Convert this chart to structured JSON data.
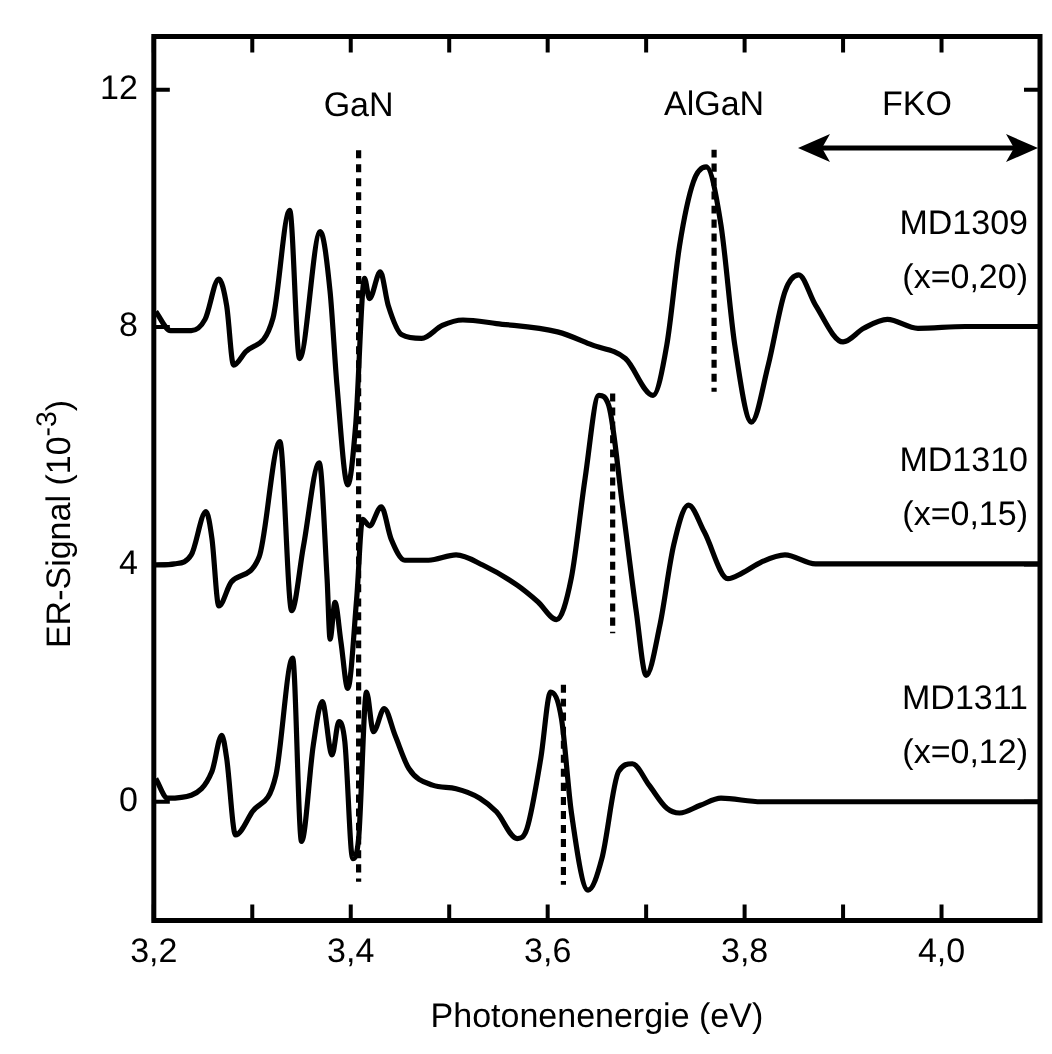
{
  "chart_data": {
    "type": "line",
    "xlabel": "Photonenenergie (eV)",
    "ylabel": "ER-Signal (10$^{-3}$)",
    "xlim": [
      3.2,
      4.1
    ],
    "ylim": [
      -2,
      12.9
    ],
    "xticks": [
      {
        "value": 3.2,
        "label": "3,2"
      },
      {
        "value": 3.3,
        "label": null
      },
      {
        "value": 3.4,
        "label": "3,4"
      },
      {
        "value": 3.5,
        "label": null
      },
      {
        "value": 3.6,
        "label": "3,6"
      },
      {
        "value": 3.7,
        "label": null
      },
      {
        "value": 3.8,
        "label": "3,8"
      },
      {
        "value": 3.9,
        "label": null
      },
      {
        "value": 4.0,
        "label": "4,0"
      },
      {
        "value": 4.1,
        "label": null
      }
    ],
    "yticks": [
      0,
      4,
      8,
      12
    ],
    "grid": false,
    "legend": false,
    "marker": "none",
    "line_style": "solid",
    "annotations": [
      "GaN",
      "AlGaN",
      "FKO"
    ],
    "series": [
      {
        "name": "MD1309 (x=0,20)",
        "color": "#000000",
        "x": [
          3.202,
          3.217,
          3.238,
          3.252,
          3.266,
          3.274,
          3.281,
          3.293,
          3.321,
          3.338,
          3.348,
          3.369,
          3.379,
          3.386,
          3.397,
          3.405,
          3.414,
          3.419,
          3.43,
          3.438,
          3.452,
          3.472,
          3.493,
          3.514,
          3.548,
          3.61,
          3.645,
          3.679,
          3.707,
          3.721,
          3.734,
          3.748,
          3.761,
          3.776,
          3.79,
          3.807,
          3.824,
          3.841,
          3.855,
          3.872,
          3.9,
          3.921,
          3.945,
          3.976,
          4.024,
          4.1
        ],
        "values": [
          8.26,
          7.94,
          7.94,
          8.13,
          8.81,
          8.36,
          7.36,
          7.58,
          8.15,
          9.97,
          7.47,
          9.61,
          8.6,
          7.02,
          5.34,
          6.35,
          8.82,
          8.48,
          8.93,
          8.37,
          7.87,
          7.81,
          8.03,
          8.12,
          8.06,
          7.92,
          7.7,
          7.47,
          6.85,
          7.7,
          9.38,
          10.45,
          10.7,
          9.72,
          7.7,
          6.4,
          7.36,
          8.6,
          8.88,
          8.37,
          7.75,
          7.98,
          8.13,
          7.98,
          8.01,
          8.01
        ]
      },
      {
        "name": "MD1310 (x=0,15)",
        "color": "#000000",
        "x": [
          3.202,
          3.221,
          3.238,
          3.253,
          3.259,
          3.266,
          3.279,
          3.307,
          3.328,
          3.34,
          3.352,
          3.368,
          3.376,
          3.379,
          3.384,
          3.39,
          3.397,
          3.406,
          3.412,
          3.419,
          3.431,
          3.441,
          3.455,
          3.479,
          3.507,
          3.534,
          3.569,
          3.59,
          3.609,
          3.624,
          3.638,
          3.652,
          3.662,
          3.676,
          3.69,
          3.7,
          3.714,
          3.728,
          3.743,
          3.759,
          3.783,
          3.797,
          3.817,
          3.841,
          3.872,
          3.921,
          4.1
        ],
        "values": [
          3.99,
          4.01,
          4.16,
          4.89,
          4.44,
          3.3,
          3.71,
          4.13,
          6.07,
          3.22,
          4.31,
          5.71,
          3.75,
          2.74,
          3.36,
          2.7,
          1.91,
          3.42,
          4.76,
          4.65,
          4.97,
          4.43,
          4.07,
          4.07,
          4.16,
          3.99,
          3.65,
          3.37,
          3.07,
          3.77,
          5.45,
          6.85,
          6.68,
          4.99,
          3.2,
          2.13,
          2.98,
          4.33,
          5.0,
          4.55,
          3.76,
          3.85,
          4.04,
          4.16,
          4.01,
          4.01,
          4.01
        ]
      },
      {
        "name": "MD1311 (x=0,12)",
        "color": "#000000",
        "x": [
          3.202,
          3.214,
          3.238,
          3.259,
          3.269,
          3.274,
          3.283,
          3.3,
          3.324,
          3.341,
          3.35,
          3.362,
          3.371,
          3.381,
          3.388,
          3.394,
          3.402,
          3.408,
          3.416,
          3.423,
          3.434,
          3.445,
          3.459,
          3.483,
          3.507,
          3.531,
          3.548,
          3.569,
          3.579,
          3.593,
          3.603,
          3.614,
          3.624,
          3.641,
          3.655,
          3.672,
          3.686,
          3.703,
          3.721,
          3.734,
          3.755,
          3.776,
          3.817,
          4.1
        ],
        "values": [
          0.39,
          0.06,
          0.11,
          0.51,
          1.12,
          0.73,
          -0.56,
          -0.17,
          0.45,
          2.42,
          -0.67,
          0.96,
          1.69,
          0.79,
          1.35,
          1.01,
          -0.96,
          -0.62,
          1.85,
          1.18,
          1.57,
          1.12,
          0.56,
          0.28,
          0.22,
          0.06,
          -0.17,
          -0.62,
          -0.45,
          0.73,
          1.85,
          1.4,
          -0.17,
          -1.49,
          -0.96,
          0.51,
          0.64,
          0.28,
          -0.11,
          -0.19,
          -0.06,
          0.06,
          0.0,
          0.0
        ]
      },
      {
        "type": "line",
        "line_style": "dashed",
        "color": "#000000",
        "x": [
          3.408,
          3.408
        ],
        "values": [
          10.98,
          -1.35
        ]
      },
      {
        "type": "line",
        "line_style": "dashed",
        "color": "#000000",
        "x": [
          3.769,
          3.769
        ],
        "values": [
          10.99,
          6.91
        ]
      },
      {
        "type": "line",
        "line_style": "dashed",
        "color": "#000000",
        "x": [
          3.666,
          3.666
        ],
        "values": [
          6.88,
          2.84
        ]
      },
      {
        "type": "line",
        "line_style": "dashed",
        "color": "#000000",
        "x": [
          3.616,
          3.616
        ],
        "values": [
          1.97,
          -1.4
        ]
      }
    ]
  }
}
